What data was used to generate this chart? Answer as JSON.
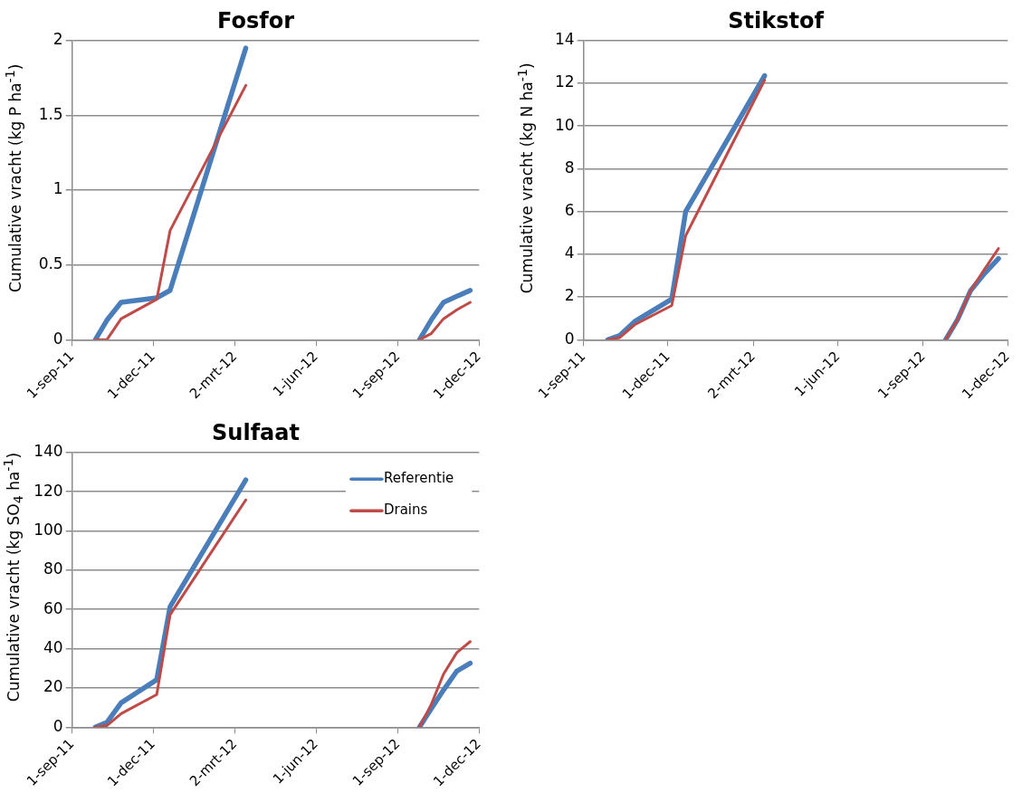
{
  "chart_data": [
    {
      "type": "line",
      "title": "Fosfor",
      "ylabel": "Cumulative vracht (kg P ha$^{-1}$)",
      "x": [
        "2011-09-27",
        "2011-10-10",
        "2011-10-26",
        "2011-12-05",
        "2011-12-20",
        "2012-03-14",
        "2012-06-15",
        "2012-09-25",
        "2012-10-08",
        "2012-10-22",
        "2012-11-06",
        "2012-11-21"
      ],
      "series": [
        {
          "color": "#4a7ebb",
          "values": [
            0,
            0.13,
            0.25,
            0.28,
            0.33,
            1.95,
            null,
            0,
            0.13,
            0.25,
            0.29,
            0.33
          ]
        },
        {
          "color": "#be4b48",
          "values": [
            0,
            0,
            0.14,
            0.27,
            0.73,
            1.7,
            null,
            0,
            0.04,
            0.14,
            0.2,
            0.25
          ]
        }
      ],
      "xlim": [
        "2011-09-01",
        "2012-12-01"
      ],
      "xticks": [
        {
          "value": "2011-09-01",
          "label": "1-sep-11"
        },
        {
          "value": "2011-12-01",
          "label": "1-dec-11"
        },
        {
          "value": "2012-03-02",
          "label": "2-mrt-12"
        },
        {
          "value": "2012-06-01",
          "label": "1-jun-12"
        },
        {
          "value": "2012-09-01",
          "label": "1-sep-12"
        },
        {
          "value": "2012-12-01",
          "label": "1-dec-12"
        }
      ],
      "ylim": [
        0,
        2
      ],
      "yticks": [
        0,
        {
          "value": 0.5,
          "label": "0.5"
        },
        1,
        {
          "value": 1.5,
          "label": "1.5"
        },
        2
      ],
      "grid": "y",
      "legend": false
    },
    {
      "type": "line",
      "title": "Stikstof",
      "ylabel": "Cumulative vracht (kg N ha$^{-1}$)",
      "x": [
        "2011-09-27",
        "2011-10-10",
        "2011-10-26",
        "2011-12-05",
        "2011-12-20",
        "2012-03-14",
        "2012-06-15",
        "2012-09-25",
        "2012-10-08",
        "2012-10-22",
        "2012-11-06",
        "2012-11-21"
      ],
      "series": [
        {
          "color": "#4a7ebb",
          "values": [
            0,
            0.2,
            0.85,
            1.9,
            6,
            12.35,
            null,
            0,
            0.95,
            2.3,
            3.1,
            3.8
          ]
        },
        {
          "color": "#be4b48",
          "values": [
            0,
            0.1,
            0.7,
            1.6,
            4.87,
            12.15,
            null,
            0,
            0.95,
            2.3,
            3.3,
            4.27
          ]
        }
      ],
      "xlim": [
        "2011-09-01",
        "2012-12-01"
      ],
      "xticks": [
        {
          "value": "2011-09-01",
          "label": "1-sep-11"
        },
        {
          "value": "2011-12-01",
          "label": "1-dec-11"
        },
        {
          "value": "2012-03-02",
          "label": "2-mrt-12"
        },
        {
          "value": "2012-06-01",
          "label": "1-jun-12"
        },
        {
          "value": "2012-09-01",
          "label": "1-sep-12"
        },
        {
          "value": "2012-12-01",
          "label": "1-dec-12"
        }
      ],
      "ylim": [
        0,
        14
      ],
      "yticks": [
        0,
        2,
        4,
        6,
        8,
        10,
        12,
        14
      ],
      "grid": "y",
      "legend": false
    },
    {
      "type": "line",
      "title": "Sulfaat",
      "ylabel": "Cumulative vracht (kg SO$_{4}$ ha$^{-1}$)",
      "x": [
        "2011-09-27",
        "2011-10-10",
        "2011-10-26",
        "2011-12-05",
        "2011-12-20",
        "2012-03-14",
        "2012-06-15",
        "2012-09-25",
        "2012-10-08",
        "2012-10-22",
        "2012-11-06",
        "2012-11-21"
      ],
      "series": [
        {
          "name": "Referentie",
          "color": "#4a7ebb",
          "values": [
            0,
            2.4,
            12.4,
            24.2,
            61.4,
            126,
            null,
            0,
            9.2,
            18.9,
            28.6,
            32.6
          ]
        },
        {
          "name": "Drains",
          "color": "#be4b48",
          "values": [
            0,
            0.8,
            6.9,
            16.6,
            57.3,
            115.8,
            null,
            0,
            11.3,
            27,
            38,
            43.6
          ]
        }
      ],
      "xlim": [
        "2011-09-01",
        "2012-12-01"
      ],
      "xticks": [
        {
          "value": "2011-09-01",
          "label": "1-sep-11"
        },
        {
          "value": "2011-12-01",
          "label": "1-dec-11"
        },
        {
          "value": "2012-03-02",
          "label": "2-mrt-12"
        },
        {
          "value": "2012-06-01",
          "label": "1-jun-12"
        },
        {
          "value": "2012-09-01",
          "label": "1-sep-12"
        },
        {
          "value": "2012-12-01",
          "label": "1-dec-12"
        }
      ],
      "ylim": [
        0,
        140
      ],
      "yticks": [
        0,
        20,
        40,
        60,
        80,
        100,
        120,
        140
      ],
      "grid": "y",
      "legend": "top right"
    }
  ]
}
